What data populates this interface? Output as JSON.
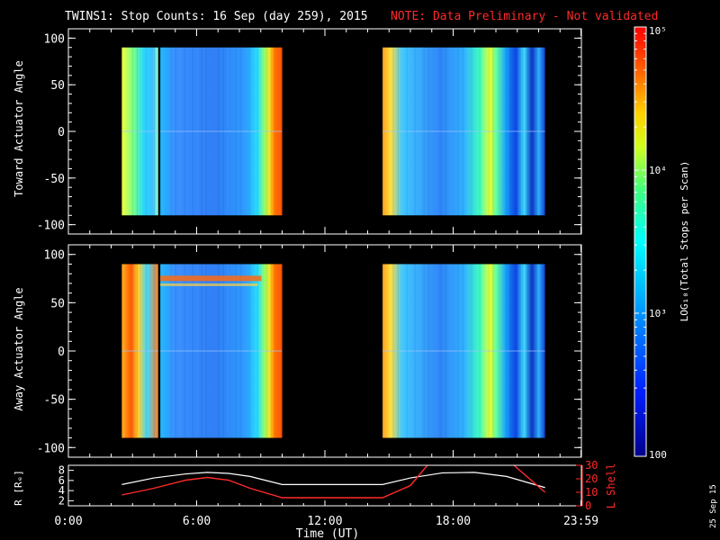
{
  "header": {
    "title": "TWINS1: Stop Counts: 16 Sep (day 259), 2015",
    "note": "NOTE: Data Preliminary - Not validated"
  },
  "colors": {
    "background": "#000000",
    "axes": "#ffffff",
    "note": "#ff2a2a",
    "l_shell": "#ff2a2a",
    "r_line": "#ffffff"
  },
  "stamp": "25 Sep 15",
  "chart_data": [
    {
      "type": "heatmap",
      "ylabel": "Toward Actuator Angle",
      "yticks": [
        "100",
        "50",
        "0",
        "-50",
        "-100"
      ],
      "ylim": [
        -110,
        110
      ],
      "xlim": [
        0,
        24
      ],
      "data_extent_y": [
        -90,
        90
      ],
      "segments": [
        {
          "start": 2.5,
          "end": 4.2,
          "level": 3.5
        },
        {
          "start": 4.3,
          "end": 10.0,
          "level": 3.1
        },
        {
          "start": 14.7,
          "end": 22.3,
          "level": 3.3
        }
      ]
    },
    {
      "type": "heatmap",
      "ylabel": "Away Actuator Angle",
      "yticks": [
        "100",
        "50",
        "0",
        "-50",
        "-100"
      ],
      "ylim": [
        -110,
        110
      ],
      "xlim": [
        0,
        24
      ],
      "data_extent_y": [
        -90,
        90
      ],
      "segments": [
        {
          "start": 2.5,
          "end": 4.2,
          "level": 3.7
        },
        {
          "start": 4.3,
          "end": 10.0,
          "level": 3.1
        },
        {
          "start": 14.7,
          "end": 22.3,
          "level": 3.3
        }
      ]
    },
    {
      "type": "line",
      "ylabel": "R [Rₑ]",
      "y2label": "L Shell",
      "xlabel": "Time (UT)",
      "xticks": [
        "0:00",
        "6:00",
        "12:00",
        "18:00",
        "23:59"
      ],
      "xtick_values": [
        0,
        6,
        12,
        18,
        23.98
      ],
      "yticks_left": [
        "8",
        "6",
        "4",
        "2"
      ],
      "yticks_right": [
        "30",
        "20",
        "10",
        "0"
      ],
      "series": [
        {
          "x": [
            2.5,
            4,
            5.5,
            6.5,
            7.5,
            8.5,
            10,
            14.7,
            16,
            17.5,
            19,
            20.5,
            22.3
          ],
          "y": [
            5.2,
            6.5,
            7.3,
            7.6,
            7.4,
            6.8,
            5.2,
            5.2,
            6.5,
            7.5,
            7.6,
            6.8,
            4.6
          ]
        },
        {
          "x": [
            2.5,
            4,
            5.5,
            6.5,
            7.5,
            8.5,
            10,
            14.7,
            16,
            16.9,
            20.7,
            22.3
          ],
          "y2": [
            8,
            13,
            19,
            21,
            19,
            13,
            6,
            6,
            15,
            32,
            32,
            10
          ]
        }
      ]
    }
  ],
  "colorbar": {
    "label": "LOG₁₀(Total Stops per Scan)",
    "ticks": [
      "10⁵",
      "10⁴",
      "10³",
      "100"
    ],
    "tick_values": [
      5,
      4,
      3,
      2
    ],
    "range": [
      2,
      5
    ]
  }
}
